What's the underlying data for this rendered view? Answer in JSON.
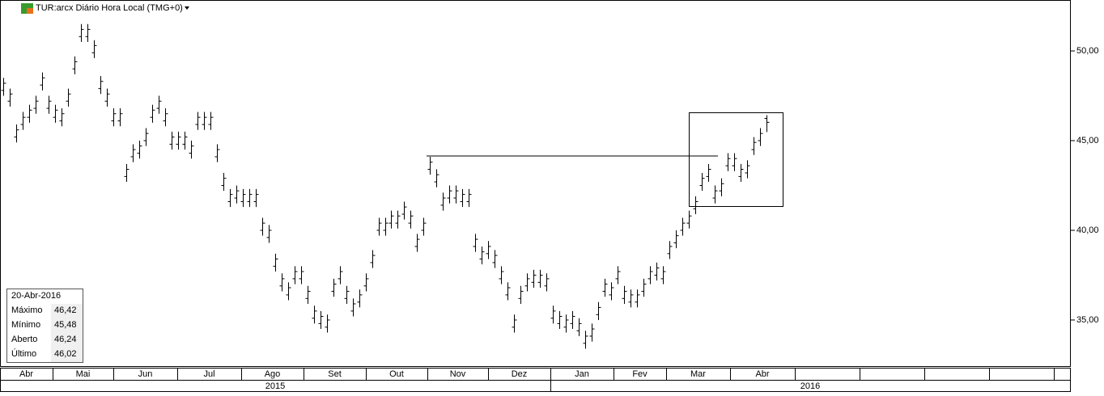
{
  "chart_data": {
    "type": "ohlc",
    "title": "TUR:arcx Diário Hora Local (TMG+0)",
    "open": [
      47.8,
      47.2,
      45.2,
      45.9,
      46.3,
      46.8,
      48.1,
      46.8,
      46.3,
      46.1,
      47.2,
      49.0,
      50.8,
      50.8,
      49.9,
      47.9,
      47.2,
      46.1,
      46.1,
      43.0,
      44.1,
      44.3,
      45.0,
      46.3,
      46.8,
      46.1,
      44.8,
      44.8,
      44.8,
      44.3,
      45.9,
      45.9,
      45.9,
      44.1,
      42.5,
      41.6,
      41.8,
      41.6,
      41.6,
      41.6,
      40.0,
      39.6,
      38.0,
      36.9,
      36.4,
      37.3,
      37.3,
      36.2,
      35.1,
      34.8,
      34.6,
      36.6,
      37.3,
      36.2,
      35.5,
      36.0,
      36.9,
      38.2,
      40.0,
      40.0,
      40.4,
      40.4,
      40.9,
      40.4,
      39.1,
      40.0,
      43.4,
      42.7,
      41.4,
      41.8,
      41.8,
      41.6,
      41.6,
      39.1,
      38.4,
      38.7,
      38.2,
      37.3,
      36.4,
      34.6,
      36.2,
      36.9,
      37.1,
      37.1,
      36.9,
      35.1,
      34.8,
      34.6,
      34.8,
      34.4,
      33.7,
      34.1,
      35.3,
      36.6,
      36.4,
      37.3,
      36.2,
      36.0,
      36.0,
      36.6,
      37.3,
      37.5,
      37.3,
      38.7,
      39.3,
      40.0,
      40.4,
      41.2,
      42.5,
      43.0,
      41.8,
      42.2,
      43.6,
      43.6,
      43.0,
      43.2,
      44.5,
      45.0,
      46.24
    ],
    "high": [
      48.5,
      47.9,
      45.9,
      46.6,
      47.0,
      47.5,
      48.8,
      47.5,
      47.0,
      46.8,
      47.9,
      49.7,
      51.5,
      51.5,
      50.6,
      48.6,
      47.9,
      46.8,
      46.8,
      43.7,
      44.8,
      45.0,
      45.7,
      47.0,
      47.5,
      46.8,
      45.5,
      45.5,
      45.5,
      45.0,
      46.6,
      46.6,
      46.6,
      44.8,
      43.2,
      42.3,
      42.5,
      42.3,
      42.3,
      42.3,
      40.7,
      40.3,
      38.7,
      37.6,
      37.1,
      38.0,
      38.0,
      36.9,
      35.8,
      35.5,
      35.3,
      37.3,
      38.0,
      36.9,
      36.2,
      36.7,
      37.6,
      38.9,
      40.7,
      40.7,
      41.1,
      41.1,
      41.6,
      41.1,
      39.8,
      40.7,
      44.1,
      43.4,
      42.1,
      42.5,
      42.5,
      42.3,
      42.3,
      39.8,
      39.1,
      39.4,
      38.9,
      38.0,
      37.1,
      35.3,
      36.9,
      37.6,
      37.8,
      37.8,
      37.6,
      35.8,
      35.5,
      35.3,
      35.5,
      35.1,
      34.4,
      34.8,
      36.0,
      37.3,
      37.1,
      38.0,
      36.9,
      36.7,
      36.7,
      37.3,
      38.0,
      38.2,
      38.0,
      39.4,
      40.0,
      40.7,
      41.1,
      41.9,
      43.2,
      43.7,
      42.5,
      42.9,
      44.3,
      44.3,
      43.7,
      43.9,
      45.2,
      45.7,
      46.42
    ],
    "low": [
      47.5,
      46.9,
      44.9,
      45.6,
      46.0,
      46.5,
      47.8,
      46.5,
      46.0,
      45.8,
      46.9,
      48.7,
      50.5,
      50.5,
      49.6,
      47.6,
      46.9,
      45.8,
      45.8,
      42.7,
      43.8,
      44.0,
      44.7,
      46.0,
      46.5,
      45.8,
      44.5,
      44.5,
      44.5,
      44.0,
      45.6,
      45.6,
      45.6,
      43.8,
      42.2,
      41.3,
      41.5,
      41.3,
      41.3,
      41.3,
      39.7,
      39.3,
      37.7,
      36.6,
      36.1,
      37.0,
      37.0,
      35.9,
      34.8,
      34.5,
      34.3,
      36.3,
      37.0,
      35.9,
      35.2,
      35.7,
      36.6,
      37.9,
      39.7,
      39.7,
      40.1,
      40.1,
      40.6,
      40.1,
      38.8,
      39.7,
      43.1,
      42.4,
      41.1,
      41.5,
      41.5,
      41.3,
      41.3,
      38.8,
      38.1,
      38.4,
      37.9,
      37.0,
      36.1,
      34.3,
      35.9,
      36.6,
      36.8,
      36.8,
      36.6,
      34.8,
      34.5,
      34.3,
      34.5,
      34.1,
      33.4,
      33.8,
      35.0,
      36.3,
      36.1,
      37.0,
      35.9,
      35.7,
      35.7,
      36.3,
      37.0,
      37.2,
      37.0,
      38.4,
      39.0,
      39.7,
      40.1,
      40.9,
      42.2,
      42.7,
      41.5,
      41.9,
      43.3,
      43.3,
      42.7,
      42.9,
      44.2,
      44.7,
      45.48
    ],
    "close": [
      48.2,
      47.6,
      45.6,
      46.3,
      46.7,
      47.2,
      48.5,
      47.2,
      46.7,
      46.5,
      47.6,
      49.4,
      51.2,
      51.2,
      50.3,
      48.3,
      47.6,
      46.5,
      46.5,
      43.4,
      44.5,
      44.7,
      45.4,
      46.7,
      47.2,
      46.5,
      45.2,
      45.2,
      45.2,
      44.7,
      46.3,
      46.3,
      46.3,
      44.5,
      42.9,
      42.0,
      42.2,
      42.0,
      42.0,
      42.0,
      40.4,
      40.0,
      38.4,
      37.3,
      36.8,
      37.7,
      37.7,
      36.6,
      35.5,
      35.2,
      35.0,
      37.0,
      37.7,
      36.6,
      35.9,
      36.4,
      37.3,
      38.6,
      40.4,
      40.4,
      40.8,
      40.8,
      41.3,
      40.8,
      39.5,
      40.4,
      43.8,
      43.1,
      41.8,
      42.2,
      42.2,
      42.0,
      42.0,
      39.5,
      38.8,
      39.1,
      38.6,
      37.7,
      36.8,
      35.0,
      36.6,
      37.3,
      37.5,
      37.5,
      37.3,
      35.5,
      35.2,
      35.0,
      35.2,
      34.8,
      34.1,
      34.5,
      35.7,
      37.0,
      36.8,
      37.7,
      36.6,
      36.4,
      36.4,
      37.0,
      37.7,
      37.9,
      37.7,
      39.1,
      39.7,
      40.4,
      40.8,
      41.6,
      42.9,
      43.4,
      42.2,
      42.6,
      44.0,
      44.0,
      43.4,
      43.6,
      44.9,
      45.4,
      46.02
    ],
    "months": [
      "Abr",
      "Mai",
      "Jun",
      "Jul",
      "Ago",
      "Set",
      "Out",
      "Nov",
      "Dez",
      "Jan",
      "Fev",
      "Mar",
      "Abr"
    ],
    "years": [
      "2015",
      "2016"
    ],
    "ylim": [
      32.43,
      52.84
    ],
    "yticks": [
      {
        "value": 35,
        "label": "35,00"
      },
      {
        "value": 40,
        "label": "40,00"
      },
      {
        "value": 45,
        "label": "45,00"
      },
      {
        "value": 50,
        "label": "50,00"
      }
    ],
    "color": "#000000",
    "info": {
      "date": "20-Abr-2016",
      "rows": [
        [
          "Máximo",
          "46,42"
        ],
        [
          "Mínimo",
          "45,48"
        ],
        [
          "Aberto",
          "46,24"
        ],
        [
          "Último",
          "46,02"
        ]
      ]
    }
  }
}
